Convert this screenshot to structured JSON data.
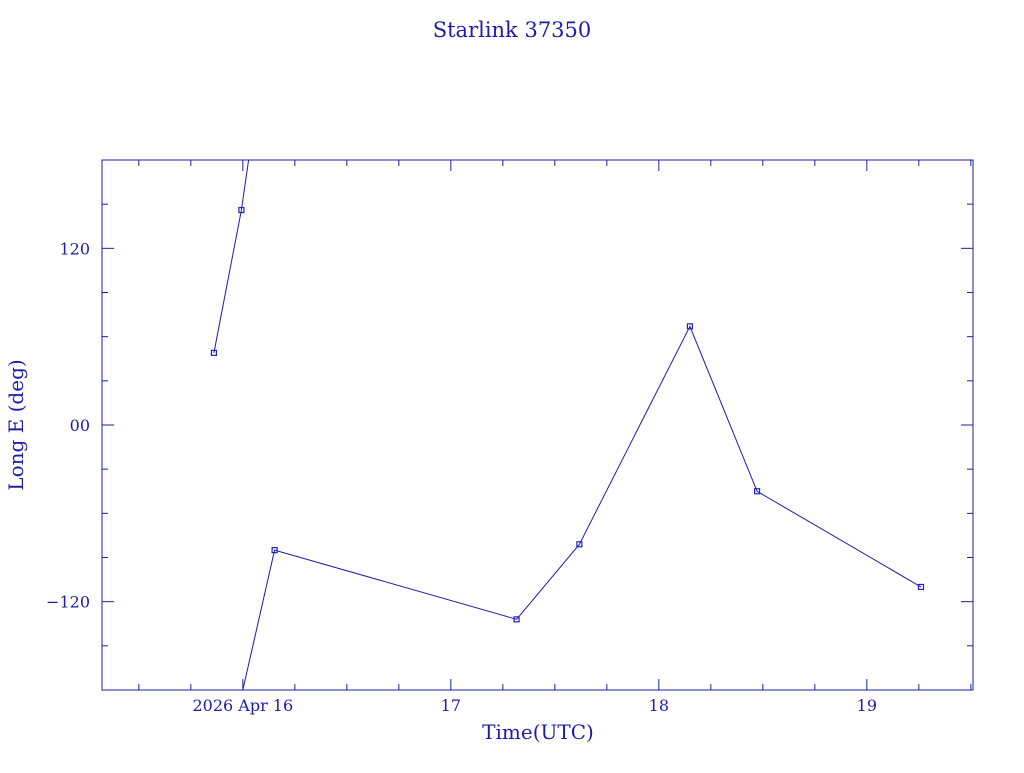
{
  "chart_data": {
    "type": "line",
    "title": "Starlink 37350",
    "xlabel": "Time(UTC)",
    "ylabel": "Long E (deg)",
    "colors": {
      "axis": "#1c1ca8",
      "line": "#1c1ca8",
      "marker": "#2020c0"
    },
    "grid": false,
    "xlim": [
      "2026-04-15T07:45",
      "2026-04-19T12:15"
    ],
    "ylim": [
      -180,
      180
    ],
    "x_ticks": [
      {
        "x": "2026-04-16T00:00",
        "label": "2026 Apr 16"
      },
      {
        "x": "2026-04-17T00:00",
        "label": "17"
      },
      {
        "x": "2026-04-18T00:00",
        "label": "18"
      },
      {
        "x": "2026-04-19T00:00",
        "label": "19"
      }
    ],
    "y_ticks": [
      {
        "y": 120,
        "label": "120"
      },
      {
        "y": 0,
        "label": "00"
      },
      {
        "y": -120,
        "label": "−120"
      }
    ],
    "points": [
      {
        "x": "2026-04-15T20:40",
        "y": 49
      },
      {
        "x": "2026-04-15T23:50",
        "y": 146
      },
      {
        "x": "2026-04-16T03:40",
        "y": -85
      },
      {
        "x": "2026-04-17T07:35",
        "y": -132
      },
      {
        "x": "2026-04-17T14:50",
        "y": -81
      },
      {
        "x": "2026-04-18T03:35",
        "y": 67
      },
      {
        "x": "2026-04-18T11:20",
        "y": -45
      },
      {
        "x": "2026-04-19T06:15",
        "y": -110
      }
    ],
    "segments": [
      [
        {
          "x": "2026-04-15T20:40",
          "y": 49
        },
        {
          "x": "2026-04-15T23:50",
          "y": 146
        },
        {
          "x": "2026-04-16T00:40",
          "y": 180
        }
      ],
      [
        {
          "x": "2026-04-16T00:00",
          "y": -180
        },
        {
          "x": "2026-04-16T03:40",
          "y": -85
        },
        {
          "x": "2026-04-17T07:35",
          "y": -132
        },
        {
          "x": "2026-04-17T14:50",
          "y": -81
        },
        {
          "x": "2026-04-18T03:35",
          "y": 67
        },
        {
          "x": "2026-04-18T11:20",
          "y": -45
        },
        {
          "x": "2026-04-19T06:15",
          "y": -110
        }
      ]
    ]
  }
}
